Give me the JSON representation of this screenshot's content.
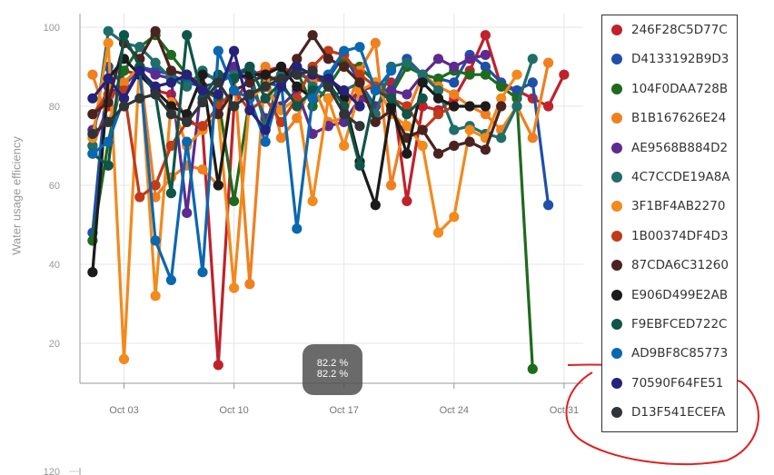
{
  "chart_data": {
    "type": "line",
    "title": "",
    "xlabel": "",
    "ylabel": "Water usage efficiency",
    "ylim": [
      10,
      105
    ],
    "yticks": [
      20,
      40,
      60,
      80,
      100
    ],
    "xticks": [
      "Oct 03",
      "Oct 10",
      "Oct 17",
      "Oct 24",
      "Oct 31"
    ],
    "grid": true,
    "legend_position": "right",
    "next_chart_partial_tick": "120",
    "tooltip": {
      "lines": [
        "82.2 %",
        "82.2 %"
      ]
    },
    "x_start_day": 1,
    "series": [
      {
        "name": "246F28C5D77C",
        "color": "#c0222b",
        "values": [
          70,
          80,
          89,
          88,
          84,
          83,
          77,
          74,
          14.5,
          80,
          88,
          89,
          90,
          88,
          87,
          86,
          80,
          84,
          85,
          86,
          56,
          80,
          79,
          82,
          89,
          98,
          85,
          84,
          82,
          80,
          88
        ]
      },
      {
        "name": "D4133192B9D3",
        "color": "#1f4fa8",
        "values": [
          48,
          90,
          85,
          90,
          89,
          88,
          86,
          85,
          86,
          88,
          90,
          86,
          85,
          81,
          83,
          87,
          93,
          86,
          80,
          84,
          92,
          88,
          87,
          86,
          93,
          90,
          86,
          84,
          86,
          55
        ]
      },
      {
        "name": "104F0DAA728B",
        "color": "#1e6a1e",
        "values": [
          46,
          71,
          89,
          95,
          98,
          93,
          88,
          84,
          82,
          56,
          82,
          86,
          88,
          89,
          80,
          85,
          91,
          90,
          86,
          83,
          90,
          88,
          87,
          89,
          88,
          88,
          85,
          82,
          13.5
        ]
      },
      {
        "name": "B1B167626E24",
        "color": "#f07f1f",
        "values": [
          88,
          76,
          86,
          90,
          57,
          62,
          65,
          64,
          60,
          89,
          35,
          90,
          72,
          77,
          86,
          76,
          77,
          89,
          96,
          60,
          78,
          88,
          85,
          83,
          80,
          78,
          74,
          80,
          72,
          91
        ]
      },
      {
        "name": "AE9568B884D2",
        "color": "#5d2a8f",
        "values": [
          74,
          85,
          82,
          90,
          88,
          87,
          53,
          88,
          87,
          90,
          86,
          77,
          80,
          84,
          73,
          75,
          76,
          82,
          80,
          84,
          83,
          88,
          92,
          90,
          92,
          93
        ]
      },
      {
        "name": "4C7CCDE19A8A",
        "color": "#1f6e6a",
        "values": [
          70,
          99,
          96,
          95,
          91,
          87,
          85,
          89,
          86,
          88,
          89,
          75,
          88,
          90,
          85,
          82,
          84,
          86,
          78,
          90,
          91,
          88,
          84,
          74,
          75,
          73,
          72,
          80,
          92
        ]
      },
      {
        "name": "3F1BF4AB2270",
        "color": "#f28a1c",
        "values": [
          72,
          96,
          16,
          92,
          32,
          81,
          70,
          74,
          78,
          34,
          82,
          85,
          79,
          82,
          56,
          82,
          70,
          84,
          86,
          78,
          75,
          70,
          48,
          52,
          74,
          72,
          82,
          88
        ]
      },
      {
        "name": "1B00374DF4D3",
        "color": "#c03b1a",
        "values": [
          78,
          83,
          84,
          57,
          60,
          70,
          76,
          75,
          80,
          84,
          79,
          82,
          76,
          82,
          90,
          94,
          93,
          88,
          85,
          82,
          80,
          74,
          78,
          80
        ]
      },
      {
        "name": "87CDA6C31260",
        "color": "#4a2320",
        "values": [
          78,
          81,
          96,
          92,
          99,
          89,
          88,
          85,
          78,
          84,
          86,
          88,
          86,
          92,
          98,
          92,
          90,
          86,
          76,
          79,
          72,
          74,
          68,
          70,
          71,
          69,
          80
        ]
      },
      {
        "name": "E906D499E2AB",
        "color": "#1b1b1b",
        "values": [
          38,
          87,
          92,
          88,
          84,
          80,
          78,
          88,
          60,
          87,
          88,
          88,
          90,
          85,
          82,
          88,
          82,
          66,
          55,
          80,
          68,
          86,
          82,
          80,
          80,
          80
        ]
      },
      {
        "name": "F9EBFCED722C",
        "color": "#0f5548",
        "values": [
          68,
          65,
          98,
          90,
          83,
          58,
          98,
          82,
          88,
          87,
          90,
          82,
          86,
          80,
          84,
          86,
          80,
          65,
          84,
          82,
          78,
          82
        ]
      },
      {
        "name": "AD9BF8C85773",
        "color": "#0b67b0",
        "values": [
          68,
          71,
          82,
          89,
          46,
          36,
          71,
          38,
          94,
          84,
          82,
          71,
          86,
          49,
          82,
          88,
          94,
          95,
          84,
          89
        ]
      },
      {
        "name": "70590F64FE51",
        "color": "#24227a",
        "values": [
          82,
          87,
          82,
          89,
          85,
          86,
          88,
          84,
          83,
          94,
          79,
          74,
          85,
          90,
          88,
          87,
          84,
          80
        ]
      },
      {
        "name": "D13F541ECEFA",
        "color": "#2f3438",
        "values": [
          73,
          76,
          80,
          82,
          83,
          78,
          76,
          81,
          86,
          80,
          83,
          85,
          87,
          88,
          89,
          85,
          78,
          75
        ]
      }
    ]
  }
}
